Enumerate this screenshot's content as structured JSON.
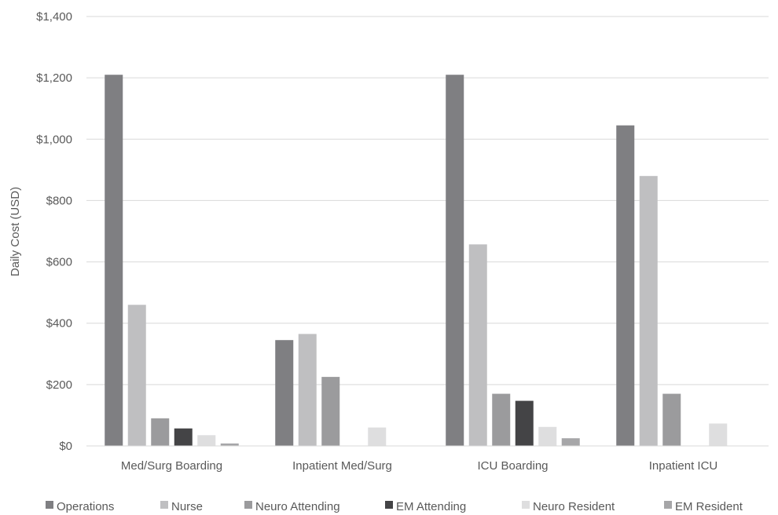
{
  "chart_data": {
    "type": "bar",
    "title": "",
    "xlabel": "",
    "ylabel": "Daily Cost (USD)",
    "ylim": [
      0,
      1400
    ],
    "ytick_step": 200,
    "ytick_labels": [
      "$0",
      "$200",
      "$400",
      "$600",
      "$800",
      "$1,000",
      "$1,200",
      "$1,400"
    ],
    "grid": true,
    "legend_position": "bottom",
    "categories": [
      "Med/Surg Boarding",
      "Inpatient Med/Surg",
      "ICU Boarding",
      "Inpatient ICU"
    ],
    "series": [
      {
        "name": "Operations",
        "color": "#7f7f82",
        "values": [
          1210,
          345,
          1210,
          1045
        ]
      },
      {
        "name": "Nurse",
        "color": "#bfbfc1",
        "values": [
          460,
          365,
          657,
          880
        ]
      },
      {
        "name": "Neuro Attending",
        "color": "#9b9b9d",
        "values": [
          90,
          225,
          170,
          170
        ]
      },
      {
        "name": "EM Attending",
        "color": "#444446",
        "values": [
          57,
          0,
          147,
          0
        ]
      },
      {
        "name": "Neuro Resident",
        "color": "#dededf",
        "values": [
          35,
          60,
          62,
          73
        ]
      },
      {
        "name": "EM Resident",
        "color": "#a6a6a8",
        "values": [
          8,
          0,
          25,
          0
        ]
      }
    ]
  }
}
